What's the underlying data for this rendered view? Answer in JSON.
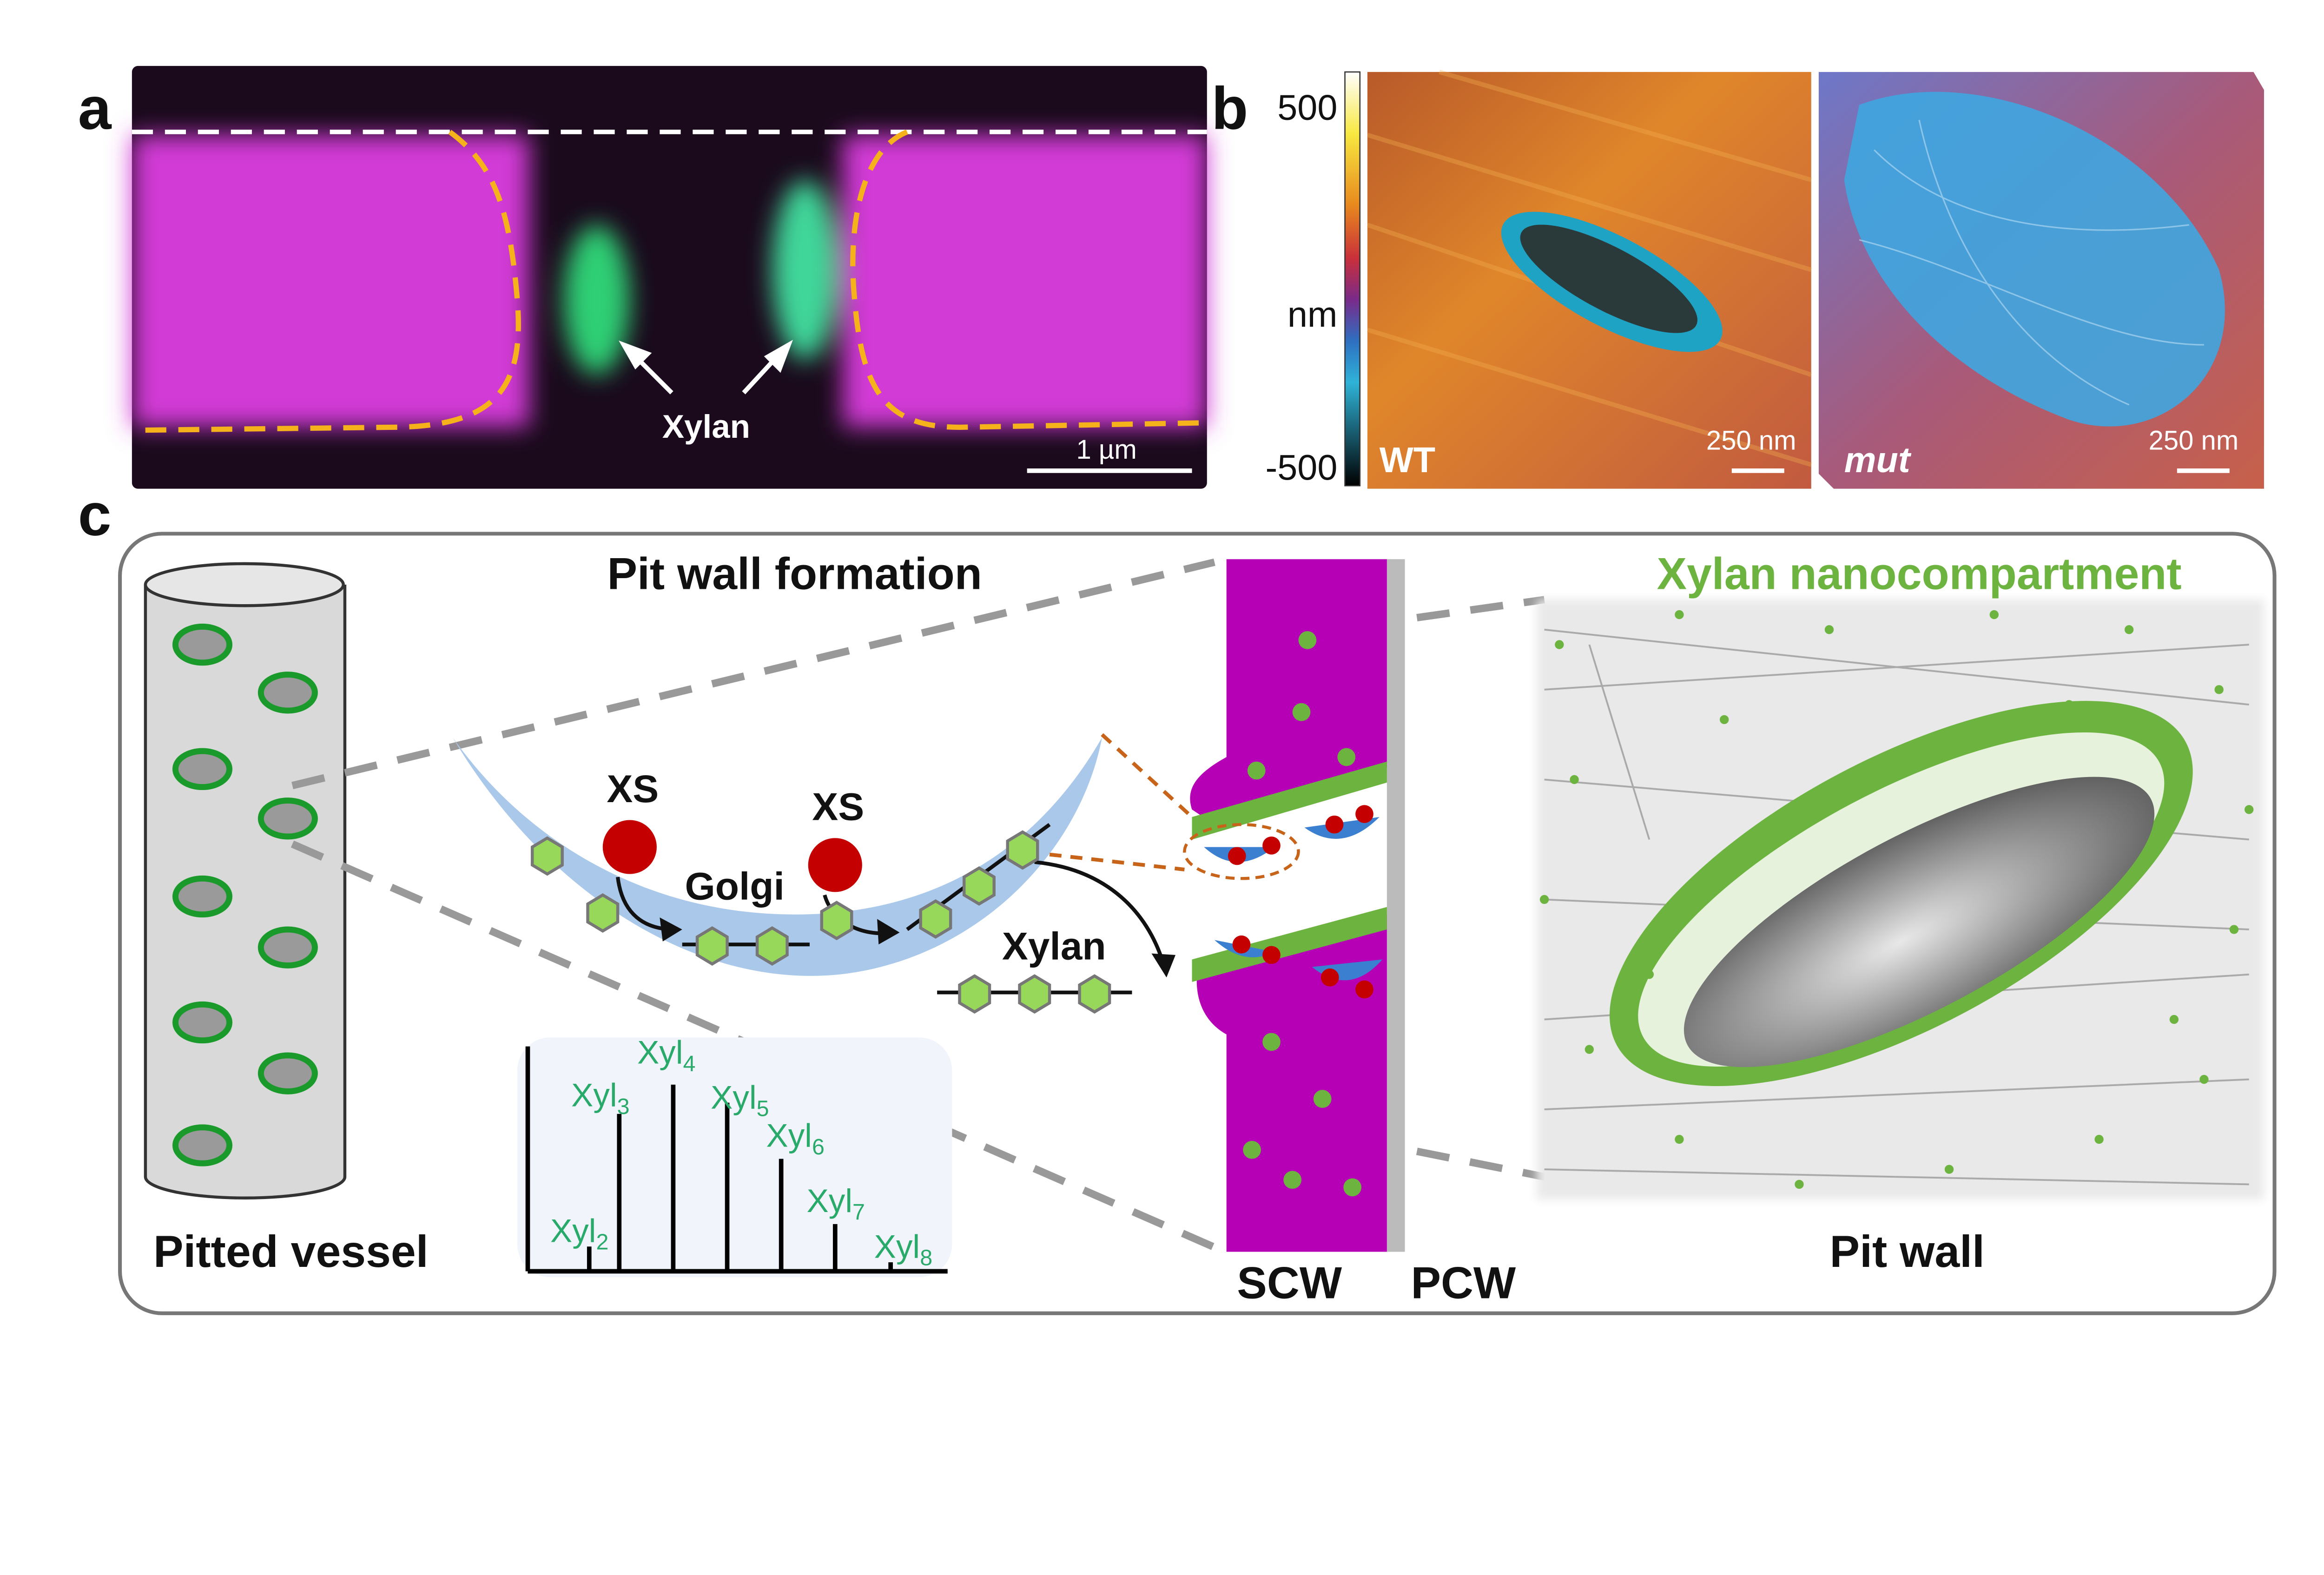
{
  "panel_a": {
    "letter": "a",
    "arrow_label": "Xylan",
    "scale_bar": "1 µm",
    "colors": {
      "cellulose": "#d23ad6",
      "xylan": "#2fcf74",
      "boundary": "#f5b21a"
    }
  },
  "panel_b": {
    "letter": "b",
    "colorbar": {
      "max": "500",
      "unit": "nm",
      "min": "-500"
    },
    "images": [
      {
        "label": "WT",
        "scale_bar": "250 nm"
      },
      {
        "label": "mut",
        "scale_bar": "250 nm"
      }
    ]
  },
  "panel_c": {
    "letter": "c",
    "vessel_label": "Pitted vessel",
    "formation_title": "Pit wall formation",
    "enzyme_1": "XS",
    "enzyme_2": "XS",
    "golgi": "Golgi",
    "xylan": "Xylan",
    "scw": "SCW",
    "pcw": "PCW",
    "nanocompartment_title": "Xylan nanocompartment",
    "pit_wall_label": "Pit wall",
    "colors": {
      "xylan_green": "#6db33f",
      "golgi_blue": "#a9c8ea",
      "wall_magenta": "#b600b6",
      "xs_red": "#c40000"
    },
    "spectrum": {
      "peaks": [
        {
          "label": "Xyl",
          "sub": "2",
          "rel_intensity": 0.11
        },
        {
          "label": "Xyl",
          "sub": "3",
          "rel_intensity": 0.7
        },
        {
          "label": "Xyl",
          "sub": "4",
          "rel_intensity": 0.83
        },
        {
          "label": "Xyl",
          "sub": "5",
          "rel_intensity": 0.75
        },
        {
          "label": "Xyl",
          "sub": "6",
          "rel_intensity": 0.5
        },
        {
          "label": "Xyl",
          "sub": "7",
          "rel_intensity": 0.21
        },
        {
          "label": "Xyl",
          "sub": "8",
          "rel_intensity": 0.04
        }
      ]
    }
  }
}
